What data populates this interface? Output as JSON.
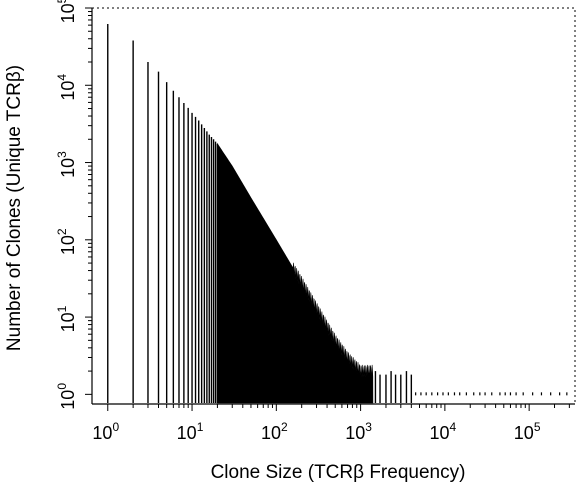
{
  "chart_data": {
    "type": "bar",
    "title": "",
    "xlabel": "Clone Size (TCRβ Frequency)",
    "ylabel": "Number of Clones (Unique TCRβ)",
    "x_scale": "log",
    "y_scale": "log",
    "xlim": [
      0.65,
      350000
    ],
    "ylim": [
      0.75,
      100000
    ],
    "x_ticks": [
      {
        "base": "10",
        "exp": "0",
        "value": 1
      },
      {
        "base": "10",
        "exp": "1",
        "value": 10
      },
      {
        "base": "10",
        "exp": "2",
        "value": 100
      },
      {
        "base": "10",
        "exp": "3",
        "value": 1000
      },
      {
        "base": "10",
        "exp": "4",
        "value": 10000
      },
      {
        "base": "10",
        "exp": "5",
        "value": 100000
      }
    ],
    "y_ticks": [
      {
        "base": "10",
        "exp": "0",
        "value": 1
      },
      {
        "base": "10",
        "exp": "1",
        "value": 10
      },
      {
        "base": "10",
        "exp": "2",
        "value": 100
      },
      {
        "base": "10",
        "exp": "3",
        "value": 1000
      },
      {
        "base": "10",
        "exp": "4",
        "value": 10000
      },
      {
        "base": "10",
        "exp": "5",
        "value": 100000
      }
    ],
    "grid": false,
    "legend": "none",
    "bar_color": "#000000",
    "frame_style": "dashed",
    "approx_power_law": {
      "x_start": 1,
      "y_start": 62000,
      "slope_low": -1.3,
      "x_break": 20,
      "slope_high": -1.75
    },
    "points": [
      {
        "x": 1,
        "y": 62000
      },
      {
        "x": 2,
        "y": 38000
      },
      {
        "x": 3,
        "y": 20000
      },
      {
        "x": 4,
        "y": 15000
      },
      {
        "x": 5,
        "y": 11000
      },
      {
        "x": 6,
        "y": 8500
      },
      {
        "x": 7,
        "y": 7000
      },
      {
        "x": 8,
        "y": 5900
      },
      {
        "x": 9,
        "y": 5100
      },
      {
        "x": 10,
        "y": 4400
      },
      {
        "x": 12,
        "y": 3500
      },
      {
        "x": 14,
        "y": 2800
      },
      {
        "x": 16,
        "y": 2300
      },
      {
        "x": 18,
        "y": 2000
      },
      {
        "x": 20,
        "y": 1750
      },
      {
        "x": 30,
        "y": 900
      },
      {
        "x": 50,
        "y": 350
      },
      {
        "x": 100,
        "y": 100
      },
      {
        "x": 200,
        "y": 28
      },
      {
        "x": 300,
        "y": 13
      },
      {
        "x": 500,
        "y": 5
      },
      {
        "x": 700,
        "y": 3
      },
      {
        "x": 1000,
        "y": 2
      },
      {
        "x": 2000,
        "y": 2
      },
      {
        "x": 4000,
        "y": 2
      },
      {
        "x": 10000,
        "y": 1
      },
      {
        "x": 100000,
        "y": 1
      },
      {
        "x": 280000,
        "y": 1
      }
    ]
  }
}
